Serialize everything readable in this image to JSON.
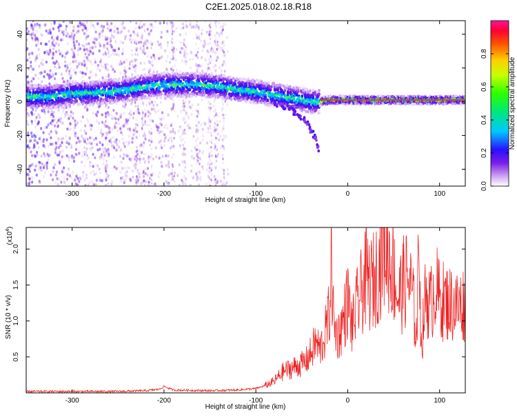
{
  "title": "C2E1.2025.018.02.18.R18",
  "chart_data": [
    {
      "type": "heatmap",
      "xlabel": "Height of straight line (km)",
      "ylabel": "Frequency (Hz)",
      "xlim": [
        -350,
        128
      ],
      "ylim": [
        -50,
        48
      ],
      "xticks": [
        -300,
        -200,
        -100,
        0,
        100
      ],
      "yticks": [
        -40,
        -20,
        0,
        20,
        40
      ],
      "ridge": {
        "x": [
          -350,
          -320,
          -300,
          -280,
          -260,
          -240,
          -220,
          -200,
          -180,
          -160,
          -140,
          -120,
          -100,
          -80,
          -60,
          -40,
          -30,
          -20,
          -10,
          0,
          20,
          60,
          100,
          128
        ],
        "y": [
          3,
          3,
          5,
          5,
          6,
          7,
          9,
          10,
          10,
          10,
          9,
          7,
          6,
          4,
          2,
          0,
          0,
          1,
          1,
          1,
          1,
          1,
          1,
          1
        ]
      },
      "tail": {
        "x": [
          -80,
          -60,
          -45,
          -35,
          -30
        ],
        "y": [
          -1,
          -5,
          -12,
          -22,
          -31
        ]
      },
      "colorbar": {
        "label": "Normalized spectral amplitude",
        "range": [
          0.0,
          1.0
        ],
        "ticks": [
          0.0,
          0.2,
          0.4,
          0.6,
          0.8
        ],
        "tick_labels": [
          "0.0",
          "0.2",
          "0.4",
          "0.6",
          "0.8"
        ]
      }
    },
    {
      "type": "line",
      "xlabel": "Height of straight line (km)",
      "ylabel": "SNR (10 * v/v)",
      "multiplier": "(x10^4)",
      "multiplier_base": "(x10",
      "multiplier_exp": "4",
      "multiplier_close": ")",
      "xlim": [
        -350,
        128
      ],
      "ylim": [
        0,
        2.3
      ],
      "xticks": [
        -300,
        -200,
        -100,
        0,
        100
      ],
      "yticks": [
        0.5,
        1.0,
        1.5,
        2.0
      ],
      "ytick_labels": [
        "0.5",
        "1.0",
        "1.5",
        "2.0"
      ],
      "color": "#ee2222",
      "series": [
        {
          "x": [
            -350,
            -300,
            -250,
            -220,
            -205,
            -200,
            -190,
            -150,
            -120,
            -100,
            -90,
            -80,
            -70,
            -60,
            -50,
            -45,
            -40,
            -35,
            -30,
            -25,
            -20,
            -18,
            -15,
            -10,
            -5,
            0,
            5,
            10,
            15,
            20,
            25,
            30,
            35,
            40,
            45,
            50,
            55,
            60,
            65,
            70,
            75,
            78,
            80,
            85,
            90,
            95,
            100,
            110,
            120,
            128
          ],
          "y": [
            0.02,
            0.02,
            0.02,
            0.03,
            0.05,
            0.09,
            0.04,
            0.03,
            0.04,
            0.06,
            0.1,
            0.16,
            0.3,
            0.35,
            0.4,
            0.45,
            0.55,
            0.7,
            0.6,
            0.8,
            1.1,
            1.9,
            0.9,
            0.8,
            1.0,
            1.3,
            0.9,
            1.2,
            1.4,
            1.6,
            1.5,
            1.6,
            1.8,
            2.1,
            1.9,
            1.7,
            1.3,
            1.5,
            1.6,
            1.4,
            0.8,
            2.2,
            0.6,
            1.4,
            1.2,
            1.5,
            1.3,
            1.25,
            1.2,
            1.25
          ]
        }
      ]
    }
  ]
}
